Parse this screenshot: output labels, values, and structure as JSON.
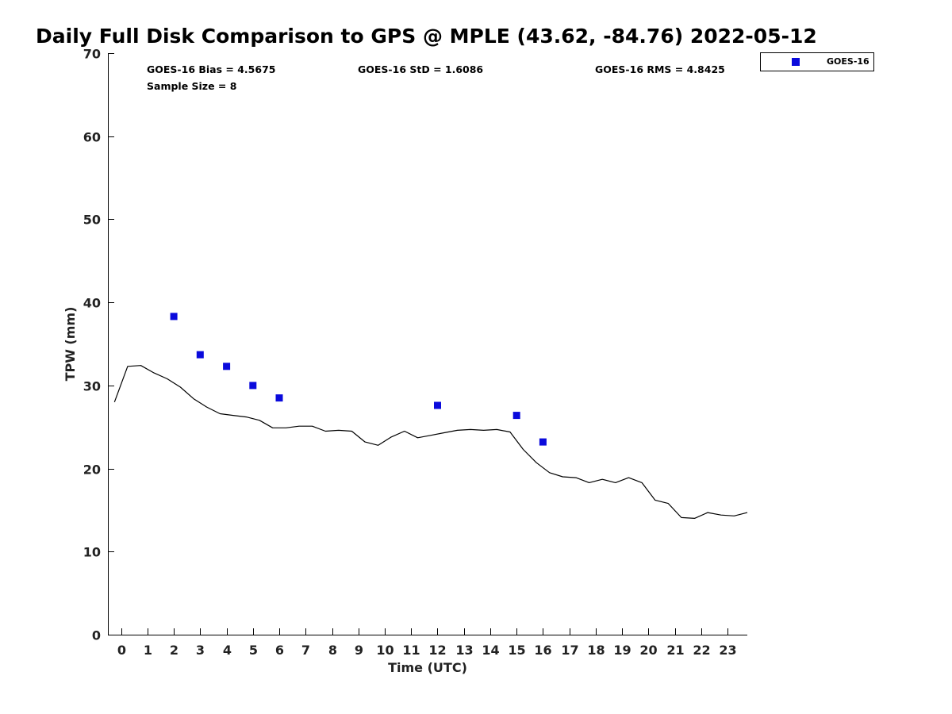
{
  "chart_data": {
    "type": "scatter",
    "title": "Daily Full Disk Comparison to GPS @ MPLE (43.62, -84.76) 2022-05-12",
    "xlabel": "Time (UTC)",
    "ylabel": "TPW (mm)",
    "xlim": [
      -0.5,
      23.75
    ],
    "ylim": [
      0,
      70
    ],
    "x_ticks": [
      0,
      1,
      2,
      3,
      4,
      5,
      6,
      7,
      8,
      9,
      10,
      11,
      12,
      13,
      14,
      15,
      16,
      17,
      18,
      19,
      20,
      21,
      22,
      23
    ],
    "x_tick_labels": [
      "0",
      "1",
      "2",
      "3",
      "4",
      "5",
      "6",
      "7",
      "8",
      "9",
      "10",
      "11",
      "12",
      "13",
      "14",
      "15",
      "16",
      "17",
      "18",
      "19",
      "20",
      "21",
      "22",
      "23"
    ],
    "y_ticks": [
      0,
      10,
      20,
      30,
      40,
      50,
      60,
      70
    ],
    "y_tick_labels": [
      "0",
      "10",
      "20",
      "30",
      "40",
      "50",
      "60",
      "70"
    ],
    "grid": false,
    "stats": {
      "bias": "GOES-16 Bias = 4.5675",
      "std": "GOES-16 StD = 1.6086",
      "rms": "GOES-16 RMS = 4.8425",
      "sample_size": "Sample Size = 8"
    },
    "legend": {
      "position": "top-right",
      "entries": [
        "GOES-16"
      ]
    },
    "series": [
      {
        "name": "GPS",
        "kind": "line",
        "color": "#000000",
        "x": [
          -0.25,
          0.25,
          0.75,
          1.25,
          1.75,
          2.25,
          2.75,
          3.25,
          3.75,
          4.25,
          4.75,
          5.25,
          5.75,
          6.25,
          6.75,
          7.25,
          7.75,
          8.25,
          8.75,
          9.25,
          9.75,
          10.25,
          10.75,
          11.25,
          11.75,
          12.25,
          12.75,
          13.25,
          13.75,
          14.25,
          14.75,
          15.25,
          15.75,
          16.25,
          16.75,
          17.25,
          17.75,
          18.25,
          18.75,
          19.25,
          19.75,
          20.25,
          20.75,
          21.25,
          21.75,
          22.25,
          22.75,
          23.25,
          23.75
        ],
        "y": [
          28.0,
          32.3,
          32.4,
          31.5,
          30.8,
          29.8,
          28.4,
          27.4,
          26.6,
          26.4,
          26.2,
          25.8,
          24.9,
          24.9,
          25.1,
          25.1,
          24.5,
          24.6,
          24.5,
          23.2,
          22.8,
          23.8,
          24.5,
          23.7,
          24.0,
          24.3,
          24.6,
          24.7,
          24.6,
          24.7,
          24.4,
          22.3,
          20.7,
          19.5,
          19.0,
          18.9,
          18.3,
          18.7,
          18.3,
          18.9,
          18.3,
          16.2,
          15.8,
          14.1,
          14.0,
          14.7,
          14.4,
          14.3,
          14.7
        ]
      },
      {
        "name": "GOES-16",
        "kind": "scatter",
        "color": "#0a0adc",
        "marker": "square",
        "x": [
          2,
          3,
          4,
          5,
          6,
          12,
          15,
          16
        ],
        "y": [
          38.3,
          33.7,
          32.3,
          30.0,
          28.5,
          27.6,
          26.4,
          23.2
        ]
      }
    ]
  }
}
